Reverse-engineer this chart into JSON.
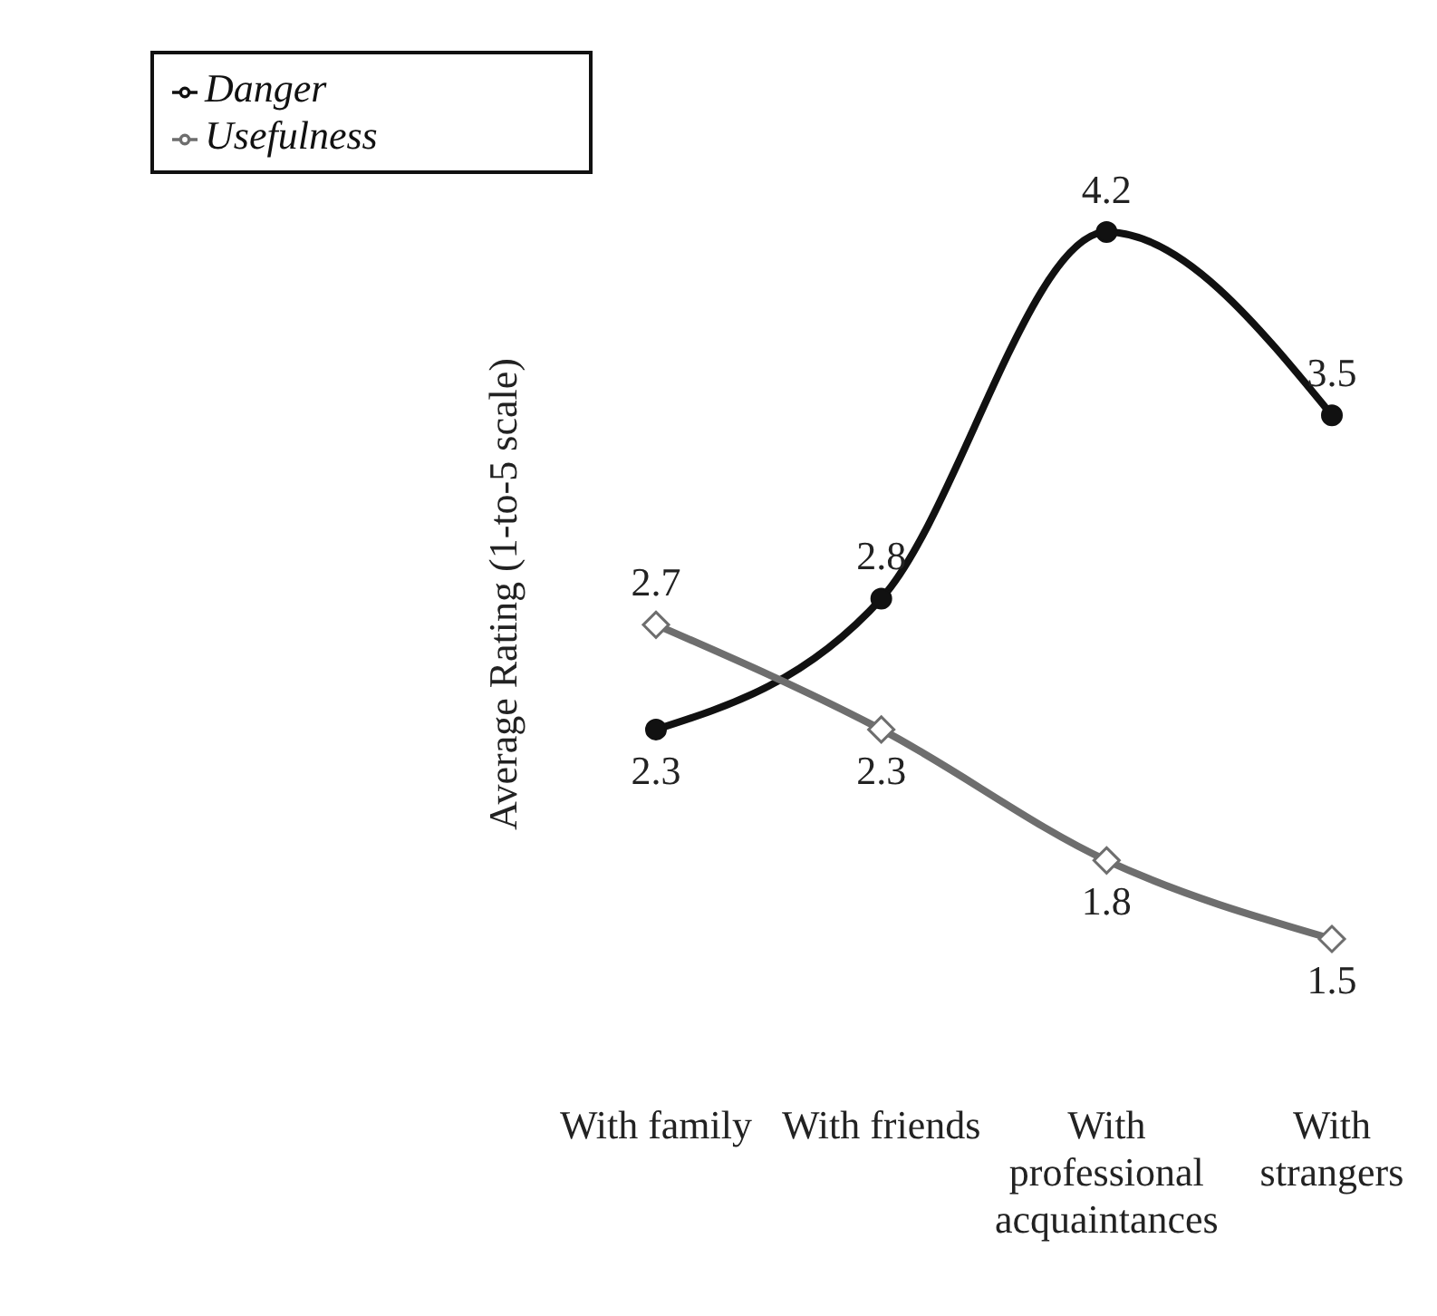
{
  "chart_data": {
    "type": "line",
    "ylabel": "Average Rating (1-to-5 scale)",
    "categories": [
      "With family",
      "With friends",
      "With professional acquaintances",
      "With strangers"
    ],
    "series": [
      {
        "name": "Danger",
        "color": "#111111",
        "marker": "circle",
        "values": [
          2.3,
          2.8,
          4.2,
          3.5
        ]
      },
      {
        "name": "Usefulness",
        "color": "#6e6e6e",
        "marker": "diamond",
        "values": [
          2.7,
          2.3,
          1.8,
          1.5
        ]
      }
    ],
    "data_labels": true,
    "grid": false,
    "legend": "top left",
    "tick_labels": "x",
    "line_style": "solid"
  }
}
